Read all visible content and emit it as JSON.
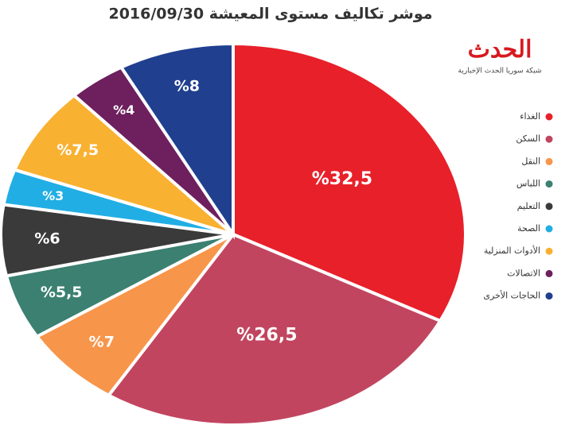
{
  "chart_data": {
    "type": "pie",
    "title": "موشر تكاليف مستوى المعيشة 2016/09/30",
    "categories": [
      "الغذاء",
      "السكن",
      "النقل",
      "اللباس",
      "التعليم",
      "الصحة",
      "الأدوات المنزلية",
      "الاتصالات",
      "الحاجات الأخرى"
    ],
    "values": [
      32.5,
      26.5,
      7,
      5.5,
      6,
      3,
      7.5,
      4,
      8
    ],
    "value_labels": [
      "%32,5",
      "%26,5",
      "%7",
      "%5,5",
      "%6",
      "%3",
      "%7,5",
      "%4",
      "%8"
    ],
    "colors": [
      "#e8202a",
      "#c2455f",
      "#f7954a",
      "#3b8071",
      "#3a3a3a",
      "#21aee4",
      "#f9b132",
      "#6d1f5e",
      "#203f8f"
    ]
  },
  "logo": {
    "name": "الحدث",
    "tagline": "شبكة سوريا الحدث الإخبارية"
  }
}
